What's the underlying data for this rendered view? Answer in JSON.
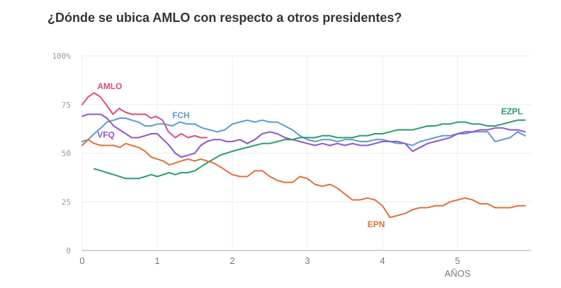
{
  "chart_data": {
    "type": "line",
    "title": "¿Dónde se ubica AMLO con respecto a otros presidentes?",
    "xlabel": "AÑOS",
    "ylabel": "",
    "xlim": [
      0,
      5.95
    ],
    "ylim": [
      0,
      100
    ],
    "x_ticks": [
      "0",
      "1",
      "2",
      "3",
      "4",
      "5"
    ],
    "x_tick_values": [
      0,
      1,
      2,
      3,
      4,
      5
    ],
    "y_ticks": [
      "100%",
      "75",
      "50",
      "25",
      "0"
    ],
    "y_tick_values": [
      100,
      75,
      50,
      25,
      0
    ],
    "grid": true,
    "series": [
      {
        "name": "AMLO",
        "color": "#de4a7a",
        "x": [
          0,
          0.08,
          0.16,
          0.24,
          0.32,
          0.41,
          0.49,
          0.58,
          0.66,
          0.75,
          0.84,
          0.92,
          0.98,
          1.07,
          1.15,
          1.24,
          1.32,
          1.41,
          1.5,
          1.58,
          1.66
        ],
        "y": [
          75,
          79,
          81,
          79,
          75,
          70,
          73,
          71,
          70,
          70,
          70,
          68,
          69,
          67,
          61,
          58,
          60,
          58,
          59,
          58,
          58
        ]
      },
      {
        "name": "FCH",
        "color": "#5b9bd1",
        "x": [
          0,
          0.08,
          0.16,
          0.25,
          0.33,
          0.42,
          0.5,
          0.58,
          0.66,
          0.75,
          0.84,
          0.92,
          1.0,
          1.1,
          1.2,
          1.3,
          1.4,
          1.5,
          1.6,
          1.7,
          1.8,
          1.9,
          2.0,
          2.1,
          2.2,
          2.3,
          2.4,
          2.5,
          2.6,
          2.7,
          2.8,
          2.9,
          3.0,
          3.1,
          3.2,
          3.3,
          3.4,
          3.5,
          3.6,
          3.7,
          3.8,
          3.9,
          4.0,
          4.1,
          4.2,
          4.3,
          4.4,
          4.5,
          4.6,
          4.7,
          4.8,
          4.9,
          5.0,
          5.1,
          5.2,
          5.3,
          5.4,
          5.5,
          5.6,
          5.7,
          5.8,
          5.9
        ],
        "y": [
          56,
          57,
          60,
          63,
          66,
          67,
          68,
          68,
          67,
          66,
          64,
          64,
          65,
          65,
          64,
          66,
          65,
          65,
          63,
          62,
          61,
          62,
          65,
          66,
          67,
          66,
          67,
          66,
          66,
          64,
          62,
          59,
          57,
          56,
          57,
          57,
          56,
          57,
          57,
          56,
          56,
          57,
          57,
          56,
          55,
          55,
          54,
          56,
          57,
          58,
          59,
          59,
          60,
          60,
          61,
          61,
          61,
          56,
          57,
          58,
          61,
          59
        ]
      },
      {
        "name": "VFQ",
        "color": "#8e55c8",
        "x": [
          0,
          0.08,
          0.16,
          0.25,
          0.33,
          0.42,
          0.5,
          0.58,
          0.66,
          0.75,
          0.84,
          0.92,
          1.0,
          1.08,
          1.16,
          1.24,
          1.32,
          1.41,
          1.5,
          1.58,
          1.66,
          1.75,
          1.84,
          1.92,
          2.0,
          2.1,
          2.2,
          2.3,
          2.4,
          2.5,
          2.6,
          2.7,
          2.8,
          2.9,
          3.0,
          3.1,
          3.2,
          3.3,
          3.4,
          3.5,
          3.6,
          3.7,
          3.8,
          3.9,
          4.0,
          4.1,
          4.2,
          4.3,
          4.4,
          4.5,
          4.6,
          4.7,
          4.8,
          4.9,
          5.0,
          5.1,
          5.2,
          5.3,
          5.4,
          5.5,
          5.6,
          5.7,
          5.8,
          5.9
        ],
        "y": [
          69,
          70,
          70,
          70,
          68,
          64,
          62,
          60,
          58,
          58,
          59,
          60,
          60,
          57,
          54,
          50,
          48,
          49,
          50,
          54,
          56,
          57,
          57,
          56,
          56,
          57,
          55,
          57,
          60,
          61,
          60,
          58,
          57,
          56,
          55,
          54,
          55,
          54,
          55,
          54,
          55,
          54,
          54,
          55,
          56,
          56,
          56,
          55,
          51,
          53,
          55,
          56,
          57,
          58,
          60,
          61,
          61,
          62,
          62,
          63,
          63,
          62,
          62,
          61
        ]
      },
      {
        "name": "EZPL",
        "color": "#2a9d6e",
        "x": [
          0.16,
          0.25,
          0.33,
          0.42,
          0.5,
          0.58,
          0.66,
          0.75,
          0.84,
          0.92,
          1.0,
          1.08,
          1.16,
          1.24,
          1.32,
          1.41,
          1.5,
          1.58,
          1.66,
          1.75,
          1.84,
          1.92,
          2.0,
          2.1,
          2.2,
          2.3,
          2.4,
          2.5,
          2.6,
          2.7,
          2.8,
          2.9,
          3.0,
          3.1,
          3.2,
          3.3,
          3.4,
          3.5,
          3.6,
          3.7,
          3.8,
          3.9,
          4.0,
          4.1,
          4.2,
          4.3,
          4.4,
          4.5,
          4.6,
          4.7,
          4.8,
          4.9,
          5.0,
          5.1,
          5.2,
          5.3,
          5.4,
          5.5,
          5.6,
          5.7,
          5.8,
          5.9
        ],
        "y": [
          42,
          41,
          40,
          39,
          38,
          37,
          37,
          37,
          38,
          39,
          38,
          39,
          40,
          39,
          40,
          40,
          41,
          43,
          45,
          47,
          49,
          50,
          51,
          52,
          53,
          54,
          55,
          55,
          56,
          57,
          57,
          58,
          58,
          58,
          59,
          59,
          58,
          58,
          58,
          59,
          59,
          60,
          60,
          61,
          62,
          62,
          62,
          63,
          64,
          64,
          65,
          65,
          66,
          66,
          65,
          65,
          64,
          64,
          65,
          66,
          67,
          67
        ]
      },
      {
        "name": "EPN",
        "color": "#e0703a",
        "x": [
          0,
          0.08,
          0.16,
          0.25,
          0.33,
          0.42,
          0.5,
          0.58,
          0.66,
          0.75,
          0.84,
          0.92,
          1.0,
          1.08,
          1.16,
          1.24,
          1.32,
          1.41,
          1.5,
          1.58,
          1.66,
          1.75,
          1.84,
          1.92,
          2.0,
          2.1,
          2.2,
          2.3,
          2.4,
          2.5,
          2.6,
          2.7,
          2.8,
          2.9,
          3.0,
          3.1,
          3.2,
          3.3,
          3.4,
          3.5,
          3.6,
          3.7,
          3.8,
          3.9,
          4.0,
          4.1,
          4.2,
          4.3,
          4.4,
          4.5,
          4.6,
          4.7,
          4.8,
          4.9,
          5.0,
          5.1,
          5.2,
          5.3,
          5.4,
          5.5,
          5.6,
          5.7,
          5.8,
          5.9
        ],
        "y": [
          54,
          57,
          55,
          54,
          54,
          54,
          53,
          55,
          54,
          53,
          51,
          48,
          47,
          46,
          44,
          45,
          46,
          47,
          46,
          47,
          46,
          45,
          43,
          41,
          39,
          38,
          38,
          41,
          41,
          38,
          36,
          35,
          35,
          38,
          37,
          34,
          33,
          34,
          32,
          29,
          26,
          26,
          27,
          26,
          23,
          17,
          18,
          19,
          21,
          22,
          22,
          23,
          23,
          25,
          26,
          27,
          26,
          24,
          24,
          22,
          22,
          22,
          23,
          23
        ]
      }
    ],
    "labels": [
      {
        "series": "AMLO",
        "text": "AMLO",
        "x": 0.2,
        "y": 83
      },
      {
        "series": "FCH",
        "text": "FCH",
        "x": 1.2,
        "y": 68
      },
      {
        "series": "VFQ",
        "text": "VFQ",
        "x": 0.2,
        "y": 58
      },
      {
        "series": "EZPL",
        "text": "EZPL",
        "x": 5.58,
        "y": 70
      },
      {
        "series": "EPN",
        "text": "EPN",
        "x": 3.8,
        "y": 12
      }
    ]
  }
}
